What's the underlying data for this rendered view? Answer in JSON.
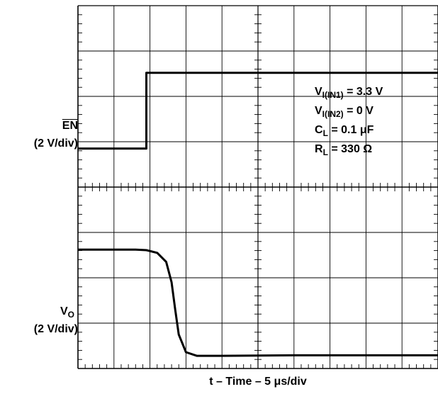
{
  "chart_data": [
    {
      "type": "line",
      "channel_label": "EN",
      "channel_scale": "(2 V/div)",
      "x_divisions": 10,
      "y_divisions": 4,
      "series": [
        {
          "name": "EN",
          "x": [
            0,
            1.9,
            1.9,
            10
          ],
          "y": [
            0.85,
            0.85,
            2.52,
            2.52
          ]
        }
      ],
      "annotations": [
        {
          "base": "V",
          "sub": "I(IN1)",
          "rest": " = 3.3 V"
        },
        {
          "base": "V",
          "sub": "I(IN2)",
          "rest": " = 0 V"
        },
        {
          "base": "C",
          "sub": "L",
          "rest": " = 0.1 μF"
        },
        {
          "base": "R",
          "sub": "L",
          "rest": " = 330 Ω"
        }
      ]
    },
    {
      "type": "line",
      "channel_label_base": "V",
      "channel_label_sub": "O",
      "channel_scale": "(2 V/div)",
      "x_divisions": 10,
      "y_divisions": 4,
      "series": [
        {
          "name": "VO",
          "x": [
            0,
            1.6,
            1.9,
            2.2,
            2.45,
            2.6,
            2.7,
            2.8,
            3.0,
            3.3,
            4.0,
            6.0,
            8.0,
            10.0
          ],
          "y": [
            2.62,
            2.62,
            2.61,
            2.55,
            2.35,
            1.9,
            1.3,
            0.75,
            0.36,
            0.28,
            0.28,
            0.29,
            0.29,
            0.29
          ]
        }
      ]
    }
  ],
  "xlabel": "t – Time – 5 μs/div"
}
